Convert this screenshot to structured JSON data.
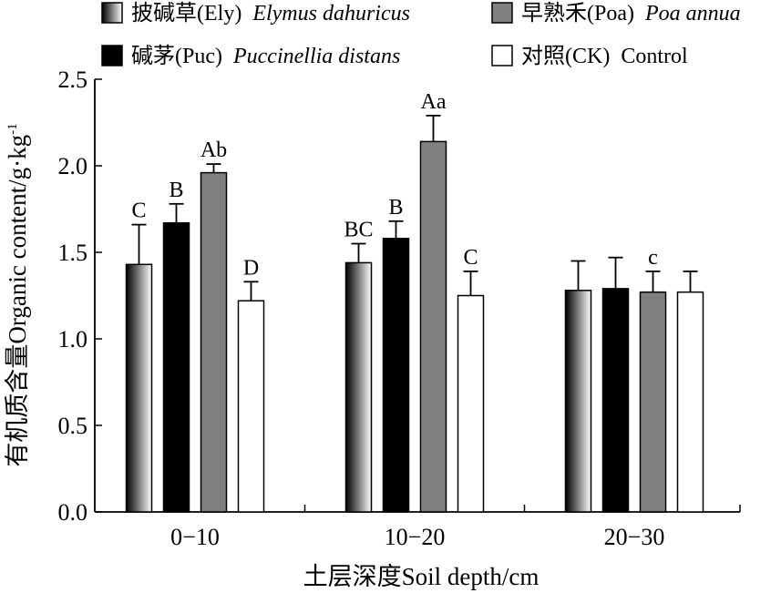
{
  "chart_data": {
    "type": "bar",
    "title": "",
    "xlabel": "土层深度Soil depth/cm",
    "ylabel_text": "有机质含量Organic content/g·kg",
    "ylabel_sup": "-1",
    "ylim": [
      0,
      2.5
    ],
    "yticks": [
      0.0,
      0.5,
      1.0,
      1.5,
      2.0,
      2.5
    ],
    "ytick_labels": [
      "0.0",
      "0.5",
      "1.0",
      "1.5",
      "2.0",
      "2.5"
    ],
    "categories": [
      "0−10",
      "10−20",
      "20−30"
    ],
    "legend_position": "top",
    "series": [
      {
        "name_cn": "披碱草(Ely)",
        "name_latin": "Elymus dahuricus",
        "fill": "gradient",
        "values": [
          1.43,
          1.44,
          1.28
        ],
        "errors": [
          0.23,
          0.11,
          0.17
        ],
        "labels": [
          "C",
          "BC",
          ""
        ]
      },
      {
        "name_cn": "碱茅(Puc)",
        "name_latin": "Puccinellia distans",
        "fill": "#000000",
        "values": [
          1.67,
          1.58,
          1.29
        ],
        "errors": [
          0.11,
          0.1,
          0.18
        ],
        "labels": [
          "B",
          "B",
          ""
        ]
      },
      {
        "name_cn": "早熟禾(Poa)",
        "name_latin": "Poa annua",
        "fill": "#808080",
        "values": [
          1.96,
          2.14,
          1.27
        ],
        "errors": [
          0.05,
          0.15,
          0.12
        ],
        "labels": [
          "Ab",
          "Aa",
          "c"
        ]
      },
      {
        "name_cn": "对照(CK)",
        "name_latin": "Control",
        "fill": "#ffffff",
        "values": [
          1.22,
          1.25,
          1.27
        ],
        "errors": [
          0.11,
          0.14,
          0.12
        ],
        "labels": [
          "D",
          "C",
          ""
        ]
      }
    ]
  }
}
